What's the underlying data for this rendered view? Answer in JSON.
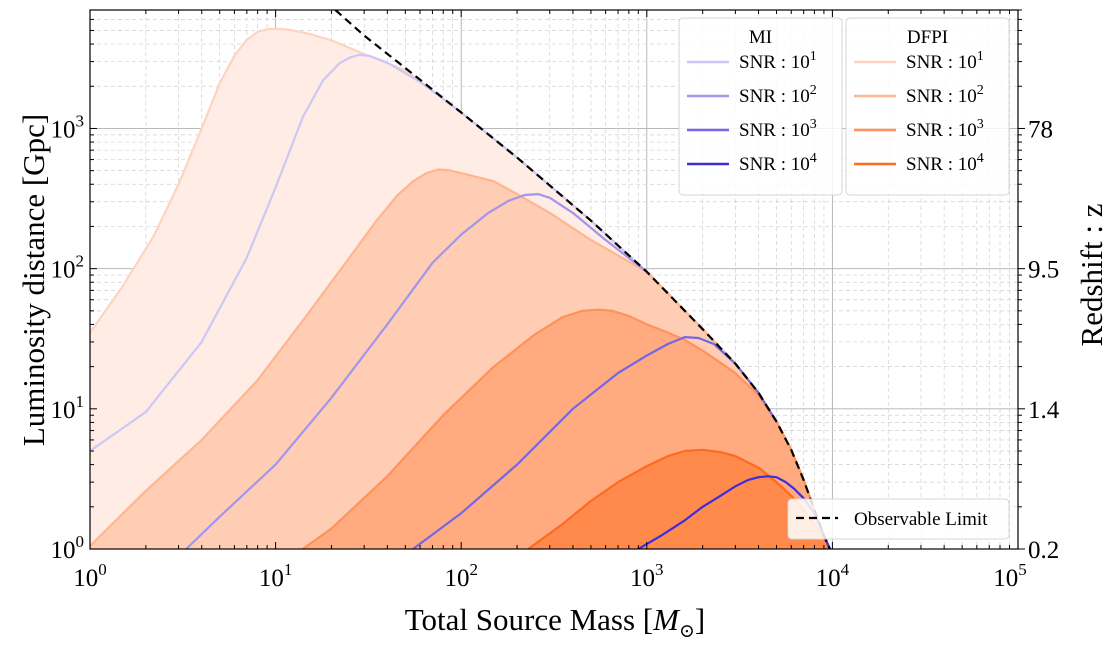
{
  "chart_data": {
    "type": "line",
    "xlabel": "Total Source Mass [",
    "xlabel_symbol": "M",
    "xlabel_sub": "⊙",
    "xlabel_close": "]",
    "ylabel": "Luminosity distance [Gpc]",
    "y2label": "Redshift : z",
    "xscale": "log",
    "yscale": "log",
    "xlim": [
      1,
      100000
    ],
    "ylim": [
      1,
      7000
    ],
    "x_ticks": [
      {
        "value": 1,
        "base": "10",
        "exp": "0"
      },
      {
        "value": 10,
        "base": "10",
        "exp": "1"
      },
      {
        "value": 100,
        "base": "10",
        "exp": "2"
      },
      {
        "value": 1000,
        "base": "10",
        "exp": "3"
      },
      {
        "value": 10000,
        "base": "10",
        "exp": "4"
      },
      {
        "value": 100000,
        "base": "10",
        "exp": "5"
      }
    ],
    "y_ticks": [
      {
        "value": 1,
        "base": "10",
        "exp": "0"
      },
      {
        "value": 10,
        "base": "10",
        "exp": "1"
      },
      {
        "value": 100,
        "base": "10",
        "exp": "2"
      },
      {
        "value": 1000,
        "base": "10",
        "exp": "3"
      }
    ],
    "y2_ticks": [
      {
        "value": 1,
        "label": "0.2"
      },
      {
        "value": 10,
        "label": "1.4"
      },
      {
        "value": 100,
        "label": "9.5"
      },
      {
        "value": 1000,
        "label": "78"
      }
    ],
    "grid": true,
    "observable_limit": {
      "name": "Observable Limit",
      "color": "#000000",
      "style": "dashed",
      "x": [
        21,
        30,
        50,
        100,
        200,
        500,
        1000,
        2000,
        3000,
        4000,
        5000,
        6000,
        7000,
        8000,
        9000,
        9700
      ],
      "y": [
        7000,
        4600,
        2700,
        1300,
        620,
        220,
        95,
        37,
        21,
        13,
        8.1,
        5.1,
        3.1,
        1.9,
        1.25,
        1.0
      ]
    },
    "series": [
      {
        "name": "SNR : 10",
        "exp": "1",
        "group": "MI",
        "color": "#ccc8f6",
        "x": [
          1,
          2,
          4,
          7,
          10,
          14,
          18,
          22,
          25,
          28,
          32,
          40,
          60,
          100,
          200,
          500,
          1000
        ],
        "y": [
          5,
          9.5,
          30,
          120,
          380,
          1200,
          2200,
          2900,
          3200,
          3350,
          3300,
          2950,
          2150,
          1300,
          620,
          220,
          95
        ]
      },
      {
        "name": "SNR : 10",
        "exp": "2",
        "group": "MI",
        "color": "#a096ec",
        "x": [
          3.3,
          5,
          10,
          20,
          40,
          70,
          100,
          140,
          180,
          220,
          260,
          300,
          400,
          600,
          1000
        ],
        "y": [
          1,
          1.7,
          4,
          12,
          40,
          110,
          175,
          250,
          305,
          335,
          340,
          320,
          250,
          160,
          95
        ]
      },
      {
        "name": "SNR : 10",
        "exp": "3",
        "group": "MI",
        "color": "#7466e4",
        "x": [
          55,
          100,
          200,
          400,
          700,
          1000,
          1300,
          1600,
          1900,
          2300,
          3000,
          4000,
          5000
        ],
        "y": [
          1,
          1.8,
          4,
          10,
          18,
          24,
          29,
          32.5,
          32,
          29,
          21,
          13,
          8.1
        ]
      },
      {
        "name": "SNR : 10",
        "exp": "4",
        "group": "MI",
        "color": "#3f2ddc",
        "x": [
          900,
          1200,
          1600,
          2000,
          2500,
          3000,
          3500,
          4000,
          4500,
          5000,
          5600,
          6200,
          7000,
          8000,
          9000,
          9700
        ],
        "y": [
          1,
          1.25,
          1.6,
          2.0,
          2.4,
          2.8,
          3.1,
          3.25,
          3.3,
          3.25,
          3.0,
          2.7,
          2.3,
          1.8,
          1.25,
          1.0
        ]
      },
      {
        "name": "SNR : 10",
        "exp": "1",
        "group": "DFPI",
        "color": "#ffd3c2",
        "fill": "#ffece4",
        "x": [
          1,
          1.5,
          2.2,
          3,
          4,
          5,
          6,
          7,
          8,
          9,
          10,
          12,
          15,
          20,
          30,
          50,
          100,
          200,
          500,
          1000,
          2000,
          3000,
          4000,
          5000,
          6000,
          7000,
          8000,
          9000,
          9700
        ],
        "y": [
          35,
          75,
          170,
          400,
          1000,
          2100,
          3300,
          4300,
          4900,
          5100,
          5150,
          5050,
          4750,
          4250,
          3400,
          2600,
          1300,
          620,
          220,
          95,
          37,
          21,
          13,
          8.1,
          5.1,
          3.1,
          1.9,
          1.25,
          1.0
        ]
      },
      {
        "name": "SNR : 10",
        "exp": "2",
        "group": "DFPI",
        "color": "#ffb58f",
        "fill": "#ffcdb3",
        "x": [
          1,
          2,
          4,
          8,
          15,
          25,
          35,
          45,
          55,
          65,
          75,
          85,
          100,
          150,
          200,
          300,
          500,
          1000,
          2000,
          3000,
          4000,
          5000,
          6000,
          7000,
          8000,
          9000,
          9700
        ],
        "y": [
          1.05,
          2.6,
          6,
          16,
          48,
          120,
          220,
          330,
          420,
          480,
          510,
          505,
          480,
          420,
          340,
          250,
          160,
          95,
          37,
          21,
          13,
          8.1,
          5.1,
          3.1,
          1.9,
          1.25,
          1.0
        ]
      },
      {
        "name": "SNR : 10",
        "exp": "3",
        "group": "DFPI",
        "color": "#ff925a",
        "fill": "#ffab7f",
        "x": [
          14,
          20,
          40,
          80,
          150,
          250,
          350,
          450,
          550,
          650,
          800,
          1000,
          1300,
          1600,
          2000,
          3000,
          4000,
          5000,
          6000,
          7000,
          8000,
          9000,
          9700
        ],
        "y": [
          1,
          1.4,
          3.3,
          9,
          20,
          34,
          45,
          50,
          51,
          50,
          46,
          40,
          35,
          31,
          26,
          18,
          12.5,
          8.1,
          5.1,
          3.1,
          1.9,
          1.25,
          1.0
        ]
      },
      {
        "name": "SNR : 10",
        "exp": "4",
        "group": "DFPI",
        "color": "#ff6a22",
        "fill": "#ff8a4c",
        "x": [
          230,
          350,
          500,
          700,
          1000,
          1300,
          1600,
          2000,
          2500,
          3000,
          4000,
          5000,
          6000,
          7000,
          8000,
          9000,
          9700
        ],
        "y": [
          1,
          1.5,
          2.2,
          3.0,
          3.9,
          4.6,
          5.0,
          5.1,
          4.9,
          4.6,
          3.8,
          3.0,
          2.4,
          1.9,
          1.5,
          1.2,
          1.0
        ]
      }
    ],
    "legend": {
      "groups": [
        {
          "title": "MI",
          "placement": "top-right"
        },
        {
          "title": "DFPI",
          "placement": "top-right"
        }
      ],
      "entry_prefix": "SNR : ",
      "entry_base": "10",
      "limit_placement": "bottom-right"
    }
  }
}
